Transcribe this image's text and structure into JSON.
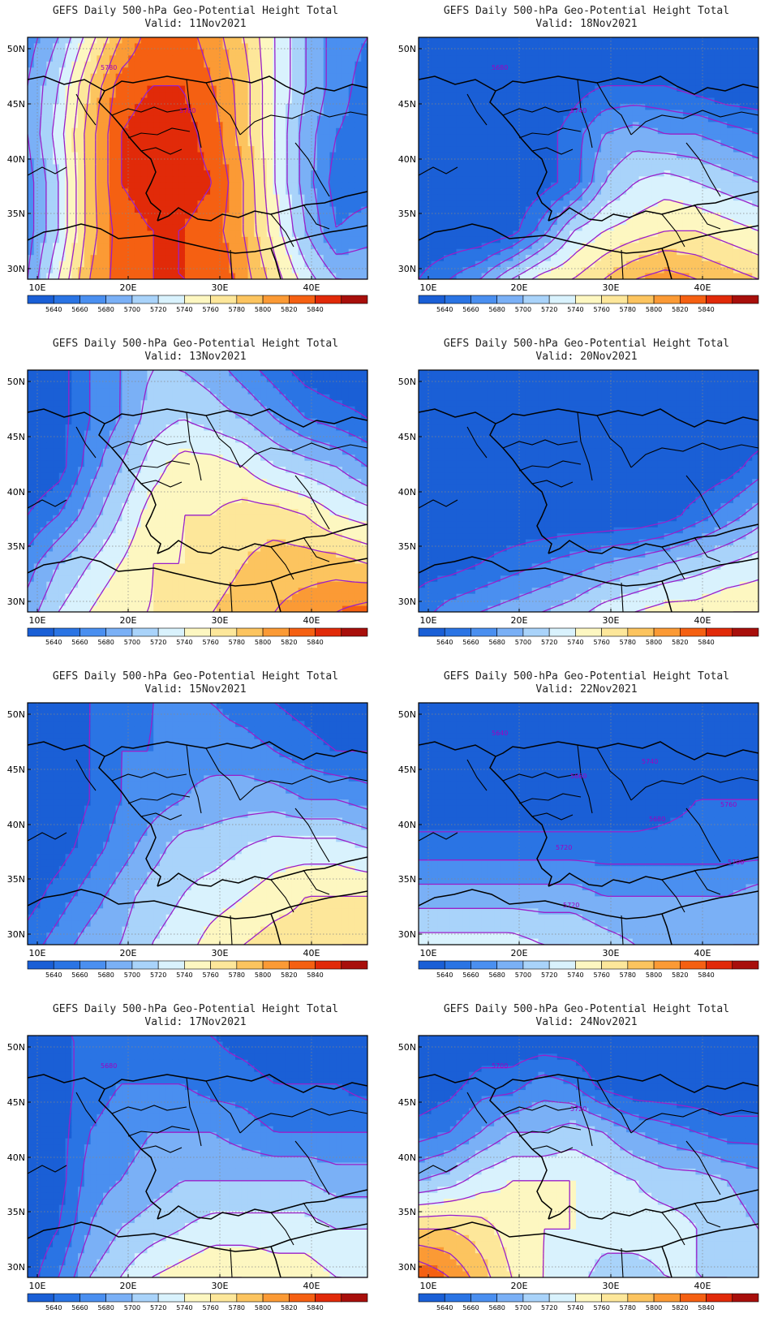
{
  "title_line": "GEFS Daily 500-hPa Geo-Potential Height Total",
  "valid_prefix": "Valid: ",
  "lat_labels": [
    "30N",
    "35N",
    "40N",
    "45N",
    "50N"
  ],
  "lon_labels": [
    "10E",
    "20E",
    "30E",
    "40E"
  ],
  "colorbar": {
    "levels": [
      "5640",
      "5660",
      "5680",
      "5700",
      "5720",
      "5740",
      "5760",
      "5780",
      "5800",
      "5820",
      "5840"
    ],
    "colors": [
      "#1a5fd6",
      "#2a74e4",
      "#4a8ff0",
      "#7ab0f6",
      "#a9d3fa",
      "#d9f2fd",
      "#fdf7c1",
      "#fde79a",
      "#fcc45f",
      "#fb9a35",
      "#f56012",
      "#e12a09",
      "#a80f0b"
    ]
  },
  "contour_color": "#9a1fc9",
  "panels": [
    {
      "date": "11Nov2021",
      "contour_labels": [
        "5780",
        "5780"
      ],
      "field": [
        [
          2.5,
          4,
          6.5,
          9,
          10.5,
          10.5,
          9.5,
          8,
          6,
          4,
          2.5,
          2
        ],
        [
          3,
          5,
          8,
          10.5,
          11,
          11,
          10,
          8.5,
          6,
          4,
          2.5,
          1.5
        ],
        [
          3,
          5.5,
          8.5,
          11,
          11.5,
          11.5,
          10.5,
          8.5,
          6,
          3.5,
          2,
          1.5
        ],
        [
          2.5,
          5,
          8.5,
          11,
          11.5,
          11.5,
          11,
          9,
          6,
          3.5,
          1.5,
          1.5
        ],
        [
          2.5,
          5,
          8.5,
          10.5,
          11,
          11,
          10.5,
          9,
          6.5,
          4,
          2,
          2.5
        ],
        [
          3,
          6,
          9,
          10.5,
          11,
          11,
          11,
          9.5,
          7.5,
          5.5,
          4,
          4
        ]
      ]
    },
    {
      "date": "18Nov2021",
      "contour_labels": [
        "5680",
        "5740"
      ],
      "field": [
        [
          0,
          0,
          0,
          0,
          0,
          0,
          0,
          0,
          0,
          0,
          0,
          0
        ],
        [
          0,
          0,
          0,
          0,
          0,
          0.5,
          1,
          1,
          1,
          0.5,
          0,
          0
        ],
        [
          0,
          0,
          0,
          0,
          0.5,
          1.5,
          3,
          3.5,
          3,
          3,
          2.5,
          2
        ],
        [
          0,
          0,
          0,
          0,
          0.5,
          1.5,
          4,
          5,
          5.5,
          5,
          4.5,
          4
        ],
        [
          0,
          0,
          0,
          0.5,
          2.5,
          5,
          6,
          6.5,
          7,
          7,
          6.5,
          6
        ],
        [
          1,
          2,
          3,
          5,
          6.5,
          7,
          8,
          9,
          9.5,
          9,
          8.5,
          8
        ]
      ]
    },
    {
      "date": "13Nov2021",
      "contour_labels": [],
      "field": [
        [
          0,
          0.5,
          2,
          3,
          4,
          4,
          3.5,
          2.5,
          1.5,
          0.5,
          0,
          0
        ],
        [
          0,
          0.5,
          2,
          3,
          4.5,
          5,
          4.5,
          4,
          3,
          2,
          1.5,
          1
        ],
        [
          0,
          0.5,
          2.5,
          4,
          5.5,
          6.5,
          6.5,
          6,
          5,
          4.5,
          4,
          3
        ],
        [
          1,
          2,
          3.5,
          5,
          6.5,
          7,
          7,
          7.5,
          7.5,
          7,
          6,
          5.5
        ],
        [
          2.5,
          4,
          5,
          6,
          7,
          7,
          7.5,
          8,
          8.5,
          8.5,
          8.5,
          8
        ],
        [
          3.5,
          5,
          6,
          7,
          7,
          7.5,
          8,
          8.5,
          9,
          9.5,
          10,
          10.5
        ]
      ]
    },
    {
      "date": "20Nov2021",
      "contour_labels": [],
      "field": [
        [
          0,
          0,
          0,
          0,
          0,
          0,
          0,
          0,
          0,
          0,
          0,
          0
        ],
        [
          0,
          0,
          0,
          0,
          0,
          0,
          0,
          0,
          0,
          0,
          0,
          0
        ],
        [
          0,
          0,
          0,
          0,
          0,
          0,
          0,
          0,
          0,
          0,
          0.5,
          1.5
        ],
        [
          0,
          0,
          0,
          0,
          0,
          0,
          0,
          0,
          0.5,
          1.5,
          2.5,
          3.5
        ],
        [
          0.5,
          0.5,
          1,
          1.5,
          2,
          2.5,
          3,
          3.5,
          4,
          4.5,
          5,
          5.5
        ],
        [
          1.5,
          2.5,
          3,
          3.5,
          4,
          4.5,
          5.5,
          6,
          6.5,
          6.5,
          7,
          7
        ]
      ]
    },
    {
      "date": "15Nov2021",
      "contour_labels": [],
      "field": [
        [
          1,
          0,
          1,
          1.5,
          2,
          2,
          2,
          1.5,
          1,
          0.5,
          0,
          0
        ],
        [
          0,
          0,
          1,
          2,
          2,
          2.5,
          2.5,
          2.5,
          2,
          1.5,
          1,
          1
        ],
        [
          0,
          0,
          1,
          2,
          2.5,
          3,
          3.5,
          3.5,
          3.5,
          3,
          3,
          2.5
        ],
        [
          0,
          0.5,
          1.5,
          2.5,
          3.5,
          4.5,
          4.5,
          5,
          5.5,
          5.5,
          5.5,
          5
        ],
        [
          0.5,
          1.5,
          2.5,
          3.5,
          4.5,
          5,
          5.5,
          6,
          6.5,
          7,
          7,
          7
        ],
        [
          1.5,
          2.5,
          3.5,
          4,
          5,
          5.5,
          6.5,
          7,
          7.5,
          7.5,
          8,
          8
        ]
      ]
    },
    {
      "date": "22Nov2021",
      "contour_labels": [
        "5640",
        "5660",
        "5680",
        "5700",
        "5720",
        "5740",
        "5760",
        "5720"
      ],
      "field": [
        [
          0,
          0,
          0,
          0,
          0,
          0,
          0,
          0,
          0,
          0,
          0,
          0
        ],
        [
          0,
          0,
          0,
          0,
          0,
          0,
          0,
          0,
          0,
          0,
          0,
          0
        ],
        [
          0,
          0,
          0,
          0,
          0,
          0,
          0,
          0,
          0.5,
          1,
          1,
          1
        ],
        [
          1.5,
          1.5,
          1.5,
          1.5,
          1.5,
          1.5,
          1.5,
          1.5,
          1.5,
          1.5,
          1.5,
          1.5
        ],
        [
          3.5,
          3.5,
          3.5,
          3.5,
          3.5,
          3.5,
          3,
          3,
          3,
          3,
          3,
          3.5
        ],
        [
          5.5,
          5.5,
          5.5,
          5.5,
          5,
          5,
          4.5,
          4,
          3.5,
          3.5,
          4,
          4
        ]
      ]
    },
    {
      "date": "17Nov2021",
      "contour_labels": [
        "5680"
      ],
      "field": [
        [
          0.5,
          1,
          1,
          1,
          1,
          1,
          1,
          0.5,
          0,
          0,
          0,
          0
        ],
        [
          0,
          0.5,
          1.5,
          2,
          2,
          2,
          1.5,
          1.5,
          1,
          1,
          1,
          0.5
        ],
        [
          0,
          0.5,
          2,
          2.5,
          3,
          3,
          3,
          2.5,
          2,
          2,
          2,
          2
        ],
        [
          0,
          0.5,
          2.5,
          3,
          3.5,
          4,
          4,
          4,
          4,
          4,
          3.5,
          3.5
        ],
        [
          0,
          1,
          3,
          4,
          4.5,
          5,
          5.5,
          5.5,
          5.5,
          5.5,
          5,
          5
        ],
        [
          0.5,
          2,
          4,
          5,
          6,
          6.5,
          7,
          7,
          6.5,
          6.5,
          6,
          6
        ]
      ]
    },
    {
      "date": "24Nov2021",
      "contour_labels": [
        "5700",
        "5720"
      ],
      "field": [
        [
          0,
          0,
          0,
          0,
          0,
          0,
          0,
          0,
          0,
          0,
          0,
          0
        ],
        [
          0,
          0.5,
          1.5,
          1.5,
          2.5,
          2,
          0.5,
          0,
          0,
          0,
          0,
          0
        ],
        [
          1.5,
          2,
          3,
          4,
          4,
          4.5,
          4,
          3,
          2.5,
          2,
          1.5,
          1.5
        ],
        [
          4,
          4.5,
          5.5,
          6,
          6,
          6,
          5.5,
          5,
          4.5,
          4.5,
          4,
          3.5
        ],
        [
          8,
          8,
          7.5,
          6.5,
          6,
          6,
          5.5,
          5.5,
          5.5,
          5,
          4.5,
          4
        ],
        [
          11,
          10,
          8.5,
          7,
          6,
          5.5,
          4.5,
          4.5,
          5,
          5,
          5,
          4.5
        ]
      ]
    }
  ]
}
